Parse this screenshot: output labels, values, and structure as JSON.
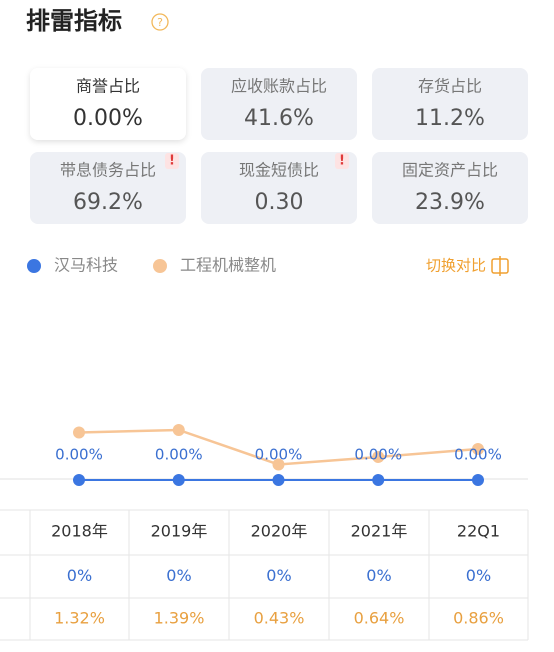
{
  "header": {
    "title": "排雷指标"
  },
  "cards": [
    {
      "label": "商誉占比",
      "value": "0.00%"
    },
    {
      "label": "应收账款占比",
      "value": "41.6%"
    },
    {
      "label": "存货占比",
      "value": "11.2%"
    },
    {
      "label": "带息债务占比",
      "value": "69.2%"
    },
    {
      "label": "现金短债比",
      "value": "0.30"
    },
    {
      "label": "固定资产占比",
      "value": "23.9%"
    }
  ],
  "switch_button": "切换对比",
  "chart_data": {
    "type": "line",
    "categories": [
      "2018年",
      "2019年",
      "2020年",
      "2021年",
      "22Q1"
    ],
    "series": [
      {
        "name": "汉马科技",
        "color": "#3b76e1",
        "values": [
          0,
          0,
          0,
          0,
          0
        ],
        "value_labels": [
          "0.00%",
          "0.00%",
          "0.00%",
          "0.00%",
          "0.00%"
        ]
      },
      {
        "name": "工程机械整机",
        "color": "#f7c596",
        "values": [
          1.32,
          1.39,
          0.43,
          0.64,
          0.86
        ]
      }
    ],
    "ylim": [
      0,
      2
    ]
  },
  "table": {
    "rows": [
      [
        "0%",
        "0%",
        "0%",
        "0%",
        "0%"
      ],
      [
        "1.32%",
        "1.39%",
        "0.43%",
        "0.64%",
        "0.86%"
      ]
    ]
  }
}
